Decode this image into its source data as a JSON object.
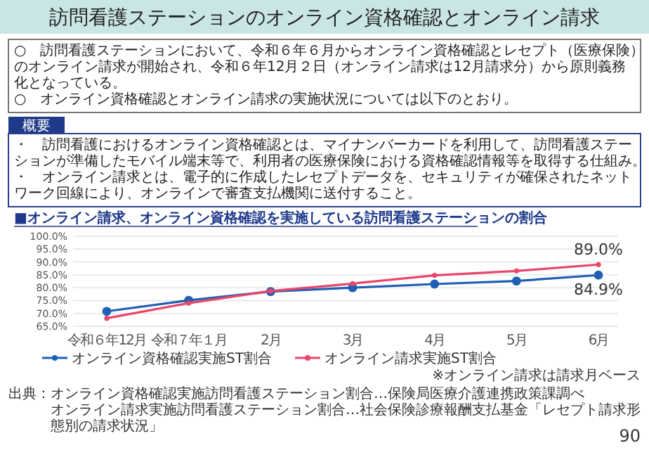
{
  "chart_data": {
    "type": "line",
    "title": "訪問看護ステーションのオンライン資格確認とオンライン請求",
    "subtitle": "■オンライン請求、オンライン資格確認を実施している訪問看護ステーションの割合",
    "categories": [
      "令和６年12月",
      "令和７年１月",
      "2月",
      "3月",
      "4月",
      "5月",
      "6月"
    ],
    "series": [
      {
        "name": "オンライン資格確認実施ST割合",
        "color": "#1f5fb5",
        "values": [
          70.8,
          75.1,
          78.5,
          80.0,
          81.4,
          82.6,
          84.9
        ],
        "value_labels": [
          null,
          null,
          null,
          null,
          null,
          null,
          "84.9%"
        ]
      },
      {
        "name": "オンライン請求実施ST割合",
        "color": "#e8476a",
        "values": [
          68.1,
          74.0,
          78.7,
          81.6,
          84.8,
          86.5,
          89.0
        ],
        "value_labels": [
          null,
          null,
          null,
          null,
          null,
          null,
          "89.0%"
        ]
      }
    ],
    "ylim": [
      65,
      100
    ],
    "yticks": [
      {
        "value": 65,
        "label": "65.0%"
      },
      {
        "value": 70,
        "label": "70.0%"
      },
      {
        "value": 75,
        "label": "75.0%"
      },
      {
        "value": 80,
        "label": "80.0%"
      },
      {
        "value": 85,
        "label": "85.0%"
      },
      {
        "value": 90,
        "label": "90.0%"
      },
      {
        "value": 95,
        "label": "95.0%"
      },
      {
        "value": 100,
        "label": "100.0%"
      }
    ],
    "grid": "y",
    "marker": "circle",
    "legend": "bottom",
    "annotations": [
      "○　訪問看護ステーションにおいて、令和６年６月からオンライン資格確認とレセプト（医療保険）のオンライン請求が開始され、令和６年12月２日（オンライン請求は12月請求分）から原則義務化となっている。",
      "○　オンライン資格確認とオンライン請求の実施状況については以下のとおり。",
      "概要",
      "・　訪問看護におけるオンライン資格確認とは、マイナンバーカードを利用して、訪問看護ステーションが準備したモバイル端末等で、利用者の医療保険における資格確認情報等を取得する仕組み。",
      "・　オンライン請求とは、電子的に作成したレセプトデータを、セキュリティが確保されたネットワーク回線により、オンラインで審査支払機関に送付すること。",
      "※オンライン請求は請求月ベース",
      "出典：オンライン資格確認実施訪問看護ステーション割合…保険局医療介護連携政策課調べ",
      "オンライン請求実施訪問看護ステーション割合…社会保険診療報酬支払基金「レセプト請求形態別の請求状況」",
      "90"
    ]
  }
}
